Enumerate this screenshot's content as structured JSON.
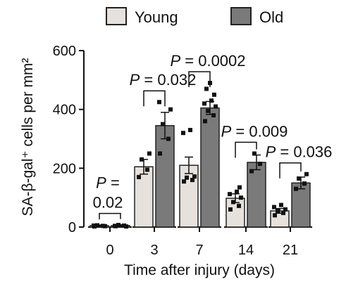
{
  "chart_data": {
    "type": "bar",
    "xlabel": "Time after injury (days)",
    "ylabel": "SA-β-gal⁺ cells per mm²",
    "categories": [
      "0",
      "3",
      "7",
      "14",
      "21"
    ],
    "ylim": [
      0,
      600
    ],
    "yticks": [
      "0",
      "200",
      "400",
      "600"
    ],
    "legend_position": "top",
    "grid": false,
    "series": [
      {
        "name": "Young",
        "color": "#e6e1dc",
        "values": [
          5,
          205,
          210,
          98,
          55
        ],
        "errors": [
          2,
          25,
          28,
          15,
          8
        ],
        "points": [
          [
            2,
            4,
            6,
            3,
            5
          ],
          [
            170,
            195,
            230,
            250
          ],
          [
            155,
            160,
            168,
            172,
            320,
            330
          ],
          [
            60,
            72,
            85,
            100,
            112,
            120,
            135
          ],
          [
            40,
            48,
            55,
            60,
            68,
            75
          ]
        ]
      },
      {
        "name": "Old",
        "color": "#7a7a7a",
        "values": [
          5,
          345,
          405,
          220,
          150
        ],
        "errors": [
          3,
          45,
          22,
          25,
          20
        ],
        "points": [
          [
            3,
            5,
            7,
            2,
            4
          ],
          [
            250,
            300,
            350,
            400,
            425
          ],
          [
            360,
            380,
            395,
            410,
            420,
            430,
            450,
            470,
            490
          ],
          [
            190,
            215,
            250
          ],
          [
            130,
            148,
            165,
            180
          ]
        ]
      }
    ],
    "annotations": [
      {
        "group": 0,
        "lines": [
          "P =",
          "0.02"
        ]
      },
      {
        "group": 1,
        "lines": [
          "P = 0.032"
        ]
      },
      {
        "group": 2,
        "lines": [
          "P = 0.0002"
        ]
      },
      {
        "group": 3,
        "lines": [
          "P = 0.009"
        ]
      },
      {
        "group": 4,
        "lines": [
          "P = 0.036"
        ]
      }
    ]
  }
}
